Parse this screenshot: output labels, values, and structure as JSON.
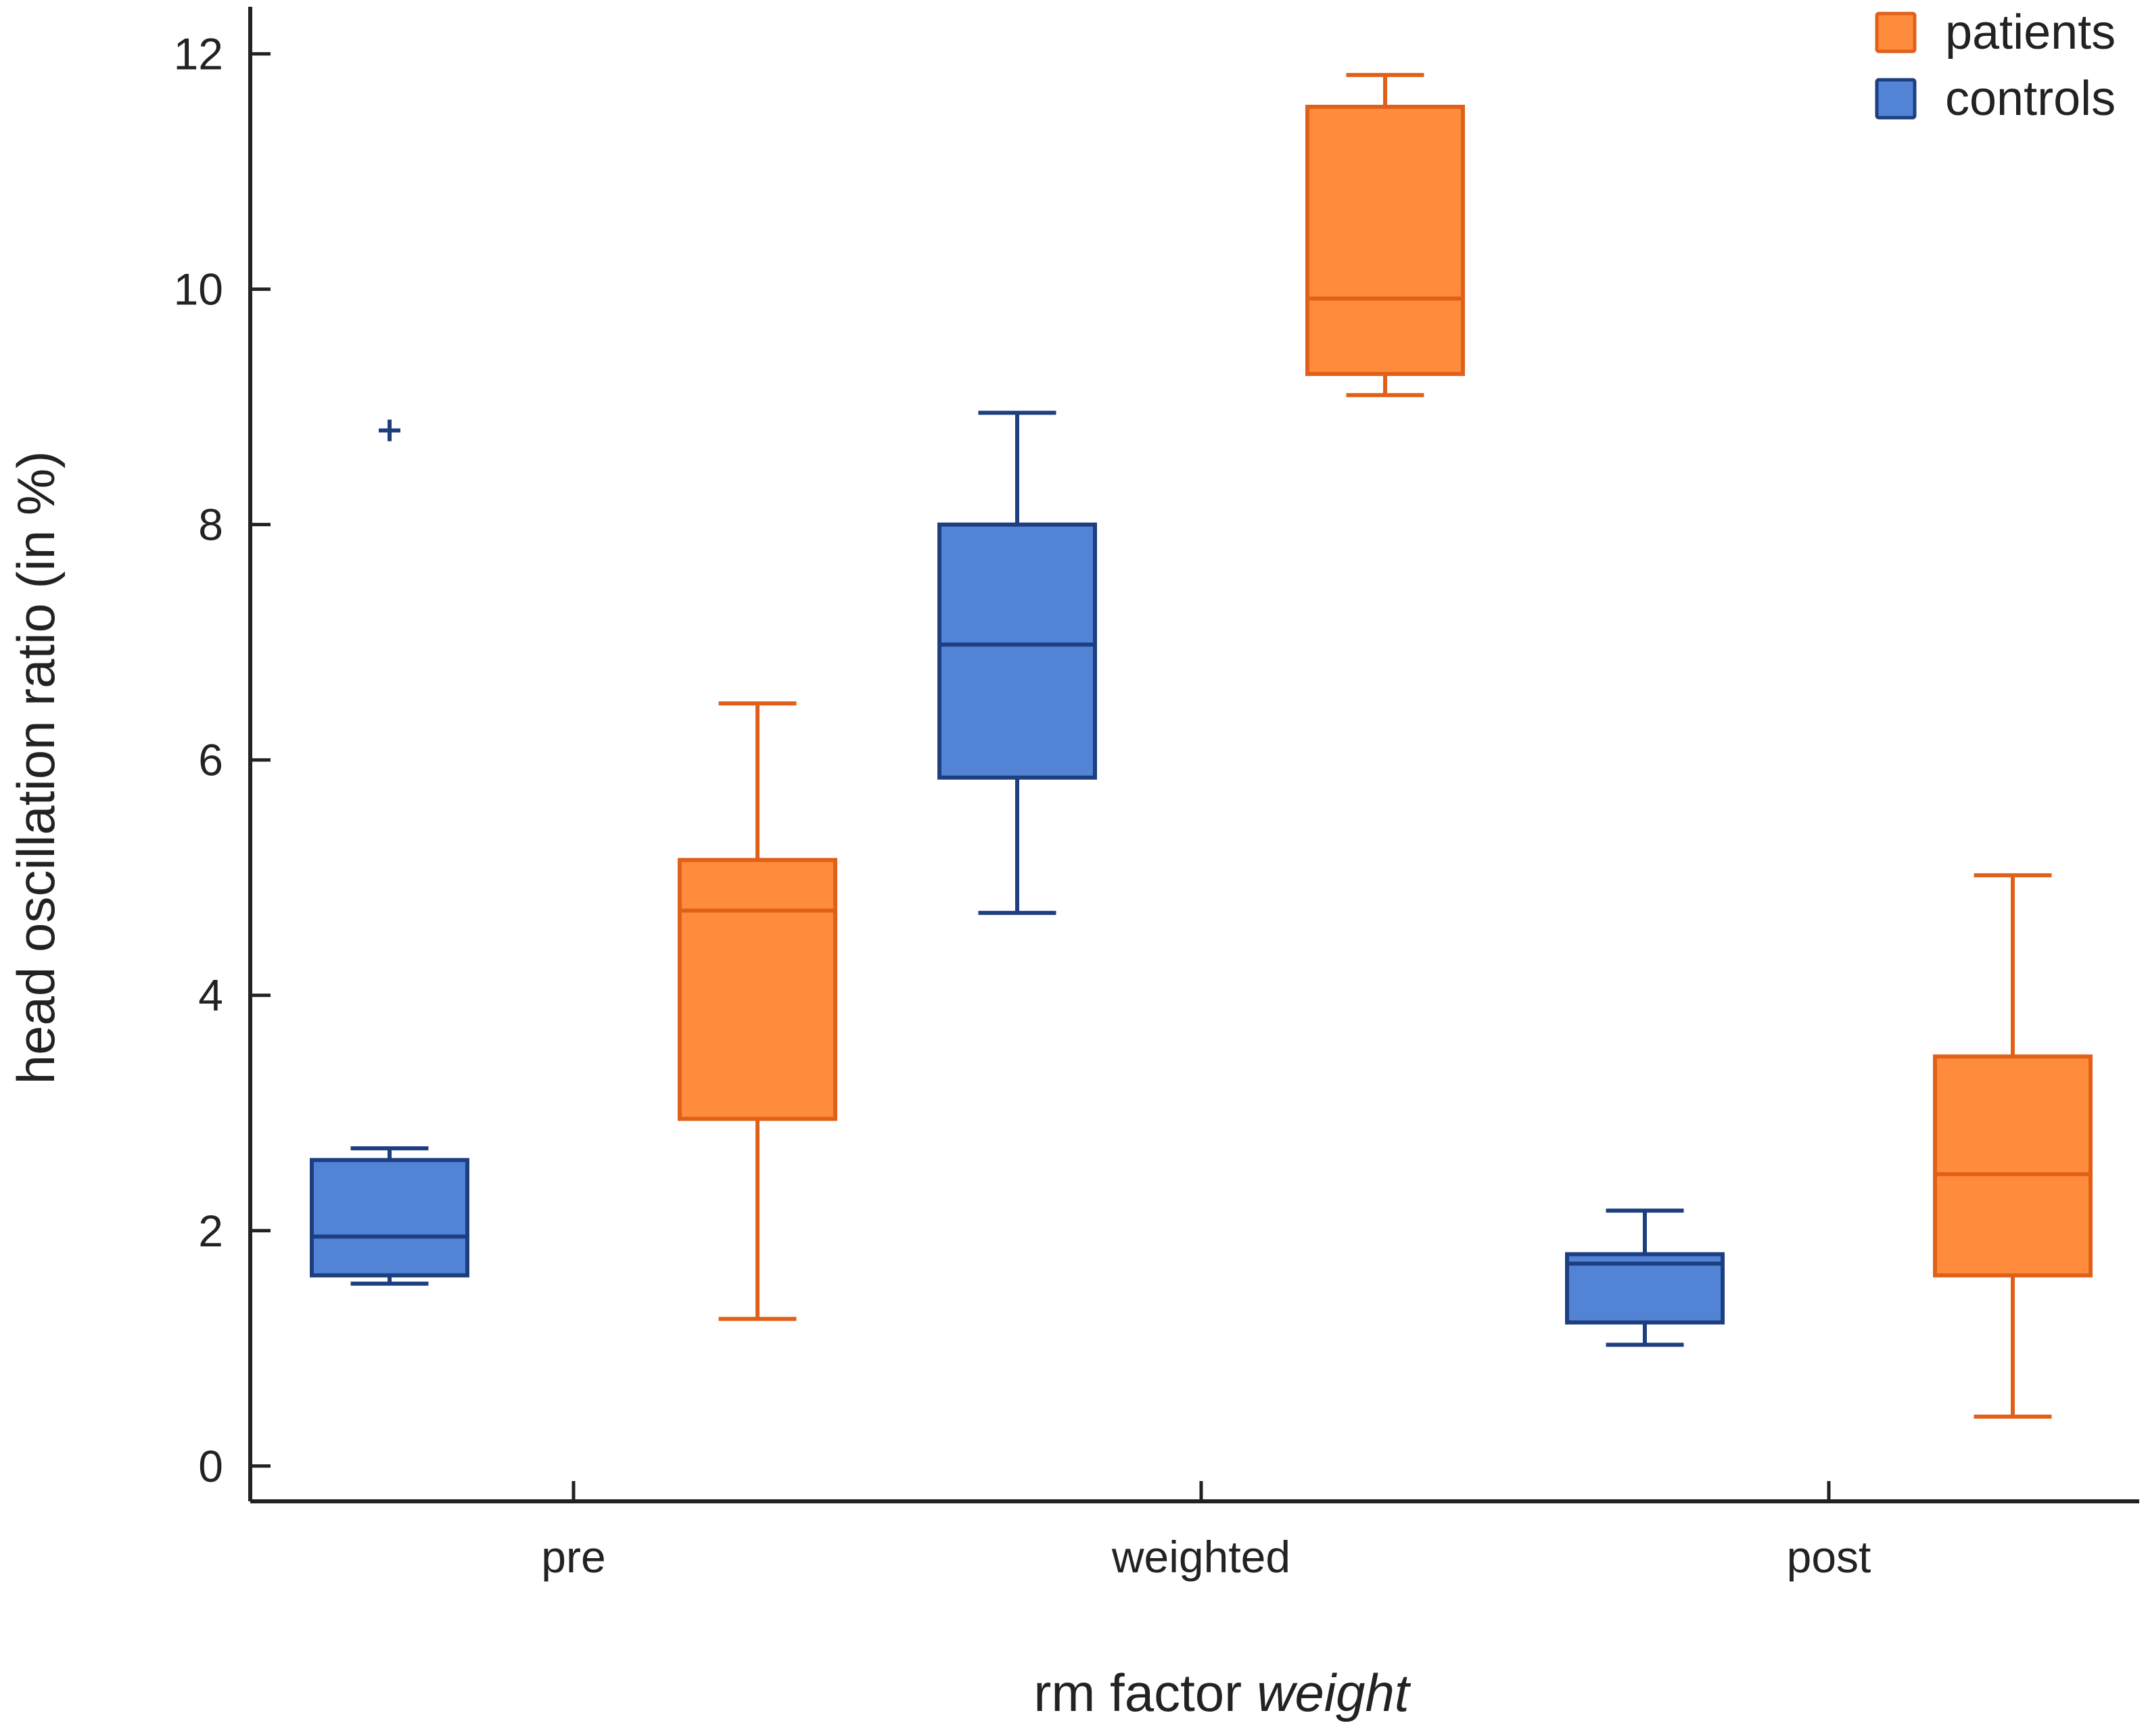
{
  "chart_data": {
    "type": "boxplot",
    "title": "",
    "xlabel": {
      "prefix": "rm factor",
      "emphasis": "weight"
    },
    "ylabel": "head oscillation ratio (in %)",
    "ylim": [
      -0.3,
      12.4
    ],
    "yticks": [
      0,
      2,
      4,
      6,
      8,
      10,
      12
    ],
    "ytick_labels": [
      "0",
      "2",
      "4",
      "6",
      "8",
      "10",
      "12"
    ],
    "categories": [
      "pre",
      "weighted",
      "post"
    ],
    "legend_position": "top-right",
    "outlier_marker": "+",
    "series": [
      {
        "name": "patients",
        "color": "#ff8c3c",
        "edge_color": "#e0601a",
        "boxes": [
          {
            "category": "pre",
            "whisker_low": 1.25,
            "q1": 2.95,
            "median": 4.72,
            "q3": 5.15,
            "whisker_high": 6.48,
            "outliers": []
          },
          {
            "category": "weighted",
            "whisker_low": 9.1,
            "q1": 9.28,
            "median": 9.92,
            "q3": 11.55,
            "whisker_high": 11.82,
            "outliers": []
          },
          {
            "category": "post",
            "whisker_low": 0.42,
            "q1": 1.62,
            "median": 2.48,
            "q3": 3.48,
            "whisker_high": 5.02,
            "outliers": []
          }
        ]
      },
      {
        "name": "controls",
        "color": "#5283d4",
        "edge_color": "#1d3f80",
        "boxes": [
          {
            "category": "pre",
            "whisker_low": 1.55,
            "q1": 1.62,
            "median": 1.95,
            "q3": 2.6,
            "whisker_high": 2.7,
            "outliers": [
              8.8
            ]
          },
          {
            "category": "weighted",
            "whisker_low": 4.7,
            "q1": 5.85,
            "median": 6.98,
            "q3": 8.0,
            "whisker_high": 8.95,
            "outliers": []
          },
          {
            "category": "post",
            "whisker_low": 1.03,
            "q1": 1.22,
            "median": 1.72,
            "q3": 1.8,
            "whisker_high": 2.17,
            "outliers": []
          }
        ]
      }
    ]
  }
}
